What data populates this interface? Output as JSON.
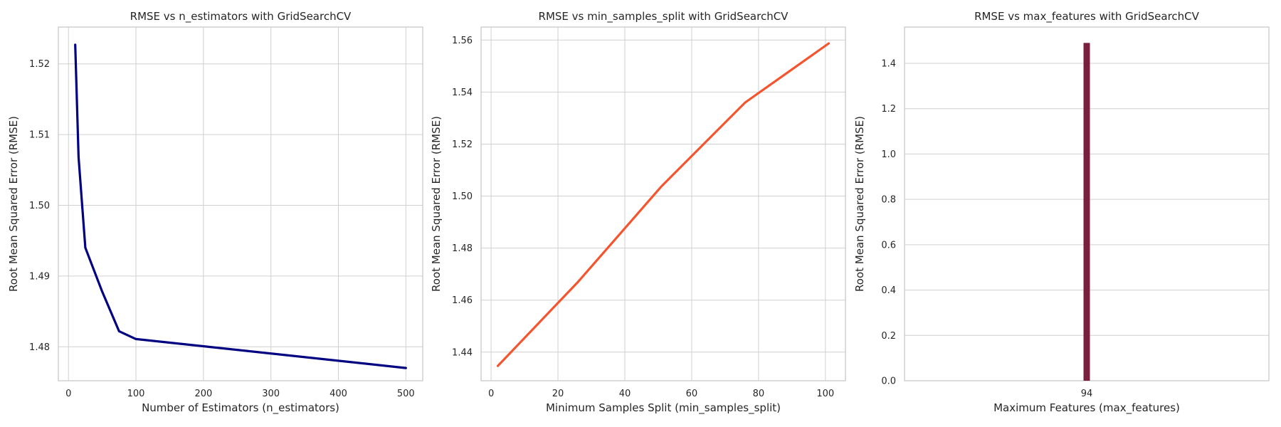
{
  "chart_data": [
    {
      "type": "line",
      "title": "RMSE vs n_estimators with GridSearchCV",
      "xlabel": "Number of Estimators (n_estimators)",
      "ylabel": "Root Mean Squared Error (RMSE)",
      "xlim": [
        -15,
        525
      ],
      "ylim": [
        1.4752,
        1.5252
      ],
      "xticks": [
        0,
        100,
        200,
        300,
        400,
        500
      ],
      "xtick_labels": [
        "0",
        "100",
        "200",
        "300",
        "400",
        "500"
      ],
      "yticks": [
        1.48,
        1.49,
        1.5,
        1.51,
        1.52
      ],
      "ytick_labels": [
        "1.48",
        "1.49",
        "1.50",
        "1.51",
        "1.52"
      ],
      "grid": true,
      "color": "#000080",
      "series": [
        {
          "x": [
            10,
            15,
            25,
            50,
            75,
            100,
            500
          ],
          "y": [
            1.5227,
            1.5068,
            1.494,
            1.4878,
            1.4822,
            1.4811,
            1.477
          ]
        }
      ]
    },
    {
      "type": "line",
      "title": "RMSE vs min_samples_split with GridSearchCV",
      "xlabel": "Minimum Samples Split (min_samples_split)",
      "ylabel": "Root Mean Squared Error (RMSE)",
      "xlim": [
        -3,
        106
      ],
      "ylim": [
        1.429,
        1.565
      ],
      "xticks": [
        0,
        20,
        40,
        60,
        80,
        100
      ],
      "xtick_labels": [
        "0",
        "20",
        "40",
        "60",
        "80",
        "100"
      ],
      "yticks": [
        1.44,
        1.46,
        1.48,
        1.5,
        1.52,
        1.54,
        1.56
      ],
      "ytick_labels": [
        "1.44",
        "1.46",
        "1.48",
        "1.50",
        "1.52",
        "1.54",
        "1.56"
      ],
      "grid": true,
      "color": "#F4552F",
      "series": [
        {
          "x": [
            2,
            26,
            51,
            76,
            101
          ],
          "y": [
            1.4347,
            1.467,
            1.5038,
            1.536,
            1.5587
          ]
        }
      ]
    },
    {
      "type": "bar",
      "title": "RMSE vs max_features with GridSearchCV",
      "xlabel": "Maximum Features (max_features)",
      "ylabel": "Root Mean Squared Error (RMSE)",
      "categories": [
        "94"
      ],
      "values": [
        1.49
      ],
      "ylim": [
        0,
        1.56
      ],
      "yticks": [
        0.0,
        0.2,
        0.4,
        0.6,
        0.8,
        1.0,
        1.2,
        1.4
      ],
      "ytick_labels": [
        "0.0",
        "0.2",
        "0.4",
        "0.6",
        "0.8",
        "1.0",
        "1.2",
        "1.4"
      ],
      "grid": true,
      "color": "#7B1F3F"
    }
  ]
}
